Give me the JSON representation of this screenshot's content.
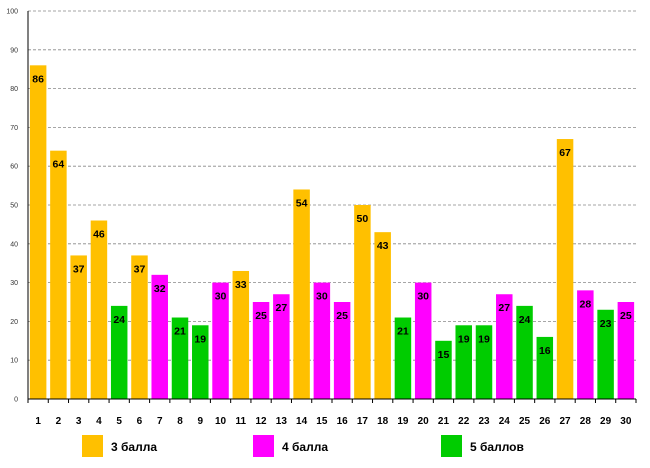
{
  "chart_data": {
    "type": "bar",
    "title": "",
    "xlabel": "",
    "ylabel": "",
    "ylim": [
      0,
      100
    ],
    "yticks": [
      0,
      10,
      20,
      30,
      40,
      50,
      60,
      70,
      80,
      90,
      100
    ],
    "grid": true,
    "categories": [
      "1",
      "2",
      "3",
      "4",
      "5",
      "6",
      "7",
      "8",
      "9",
      "10",
      "11",
      "12",
      "13",
      "14",
      "15",
      "16",
      "17",
      "18",
      "19",
      "20",
      "21",
      "22",
      "23",
      "24",
      "25",
      "26",
      "27",
      "28",
      "29",
      "30"
    ],
    "values": [
      86,
      64,
      37,
      46,
      24,
      37,
      32,
      21,
      19,
      30,
      33,
      25,
      27,
      54,
      30,
      25,
      50,
      43,
      21,
      30,
      15,
      19,
      19,
      27,
      24,
      16,
      67,
      28,
      23,
      25
    ],
    "value_labels": [
      "86",
      "64",
      "37",
      "46",
      "24",
      "37",
      "32",
      "21",
      "19",
      "30",
      "33",
      "25",
      "27",
      "54",
      "30",
      "25",
      "50",
      "43",
      "21",
      "30",
      "15",
      "19",
      "19",
      "27",
      "24",
      "16",
      "67",
      "28",
      "23",
      "25"
    ],
    "groups": [
      3,
      3,
      3,
      3,
      5,
      3,
      4,
      5,
      5,
      4,
      3,
      4,
      4,
      3,
      4,
      4,
      3,
      3,
      5,
      4,
      5,
      5,
      5,
      4,
      5,
      5,
      3,
      4,
      5,
      4
    ],
    "legend": [
      {
        "key": 3,
        "label": "3 балла",
        "color": "#FFC000"
      },
      {
        "key": 4,
        "label": "4 балла",
        "color": "#FF00FF"
      },
      {
        "key": 5,
        "label": "5 баллов",
        "color": "#00CC00"
      }
    ],
    "legend_position": "bottom"
  }
}
